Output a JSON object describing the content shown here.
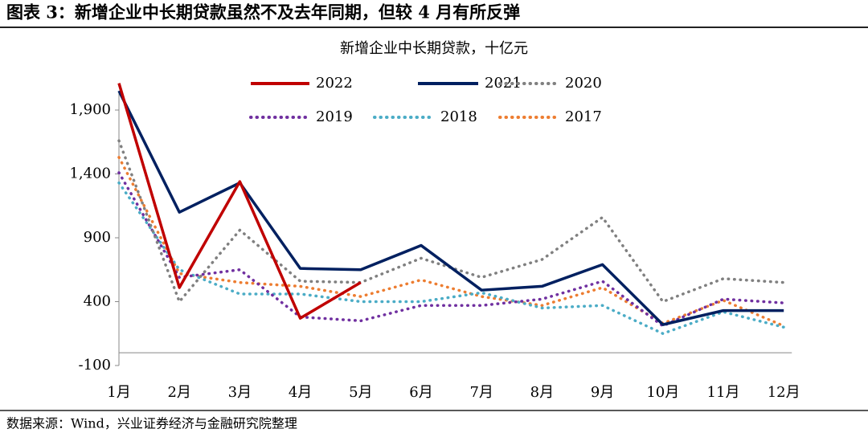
{
  "header": {
    "title": "图表 3：新增企业中长期贷款虽然不及去年同期，但较 4 月有所反弹"
  },
  "source": "数据来源：Wind，兴业证券经济与金融研究院整理",
  "chart_data": {
    "type": "line",
    "title": "新增企业中长期贷款，十亿元",
    "categories": [
      "1月",
      "2月",
      "3月",
      "4月",
      "5月",
      "6月",
      "7月",
      "8月",
      "9月",
      "10月",
      "11月",
      "12月"
    ],
    "ylim": [
      -100,
      2300
    ],
    "yticks": [
      -100,
      400,
      900,
      {
        "value": 1400,
        "label": "1,400"
      },
      {
        "value": 1900,
        "label": "1,900"
      }
    ],
    "grid": false,
    "series": [
      {
        "name": "2022",
        "color": "#c00000",
        "style": "solid",
        "values": [
          2110,
          510,
          1340,
          270,
          550,
          null,
          null,
          null,
          null,
          null,
          null,
          null
        ]
      },
      {
        "name": "2021",
        "color": "#002060",
        "style": "solid",
        "values": [
          2050,
          1100,
          1330,
          660,
          650,
          840,
          490,
          520,
          690,
          220,
          330,
          330
        ]
      },
      {
        "name": "2020",
        "color": "#808080",
        "style": "dotted",
        "values": [
          1660,
          400,
          960,
          560,
          550,
          740,
          590,
          730,
          1060,
          400,
          580,
          550
        ]
      },
      {
        "name": "2019",
        "color": "#7030a0",
        "style": "dotted",
        "values": [
          1410,
          590,
          650,
          280,
          250,
          370,
          370,
          420,
          560,
          210,
          420,
          390
        ]
      },
      {
        "name": "2018",
        "color": "#4bacc6",
        "style": "dotted",
        "values": [
          1330,
          650,
          460,
          460,
          400,
          400,
          470,
          350,
          370,
          150,
          320,
          200
        ]
      },
      {
        "name": "2017",
        "color": "#ed7d31",
        "style": "dotted",
        "values": [
          1530,
          620,
          550,
          520,
          440,
          570,
          440,
          370,
          510,
          230,
          410,
          210
        ]
      }
    ]
  }
}
